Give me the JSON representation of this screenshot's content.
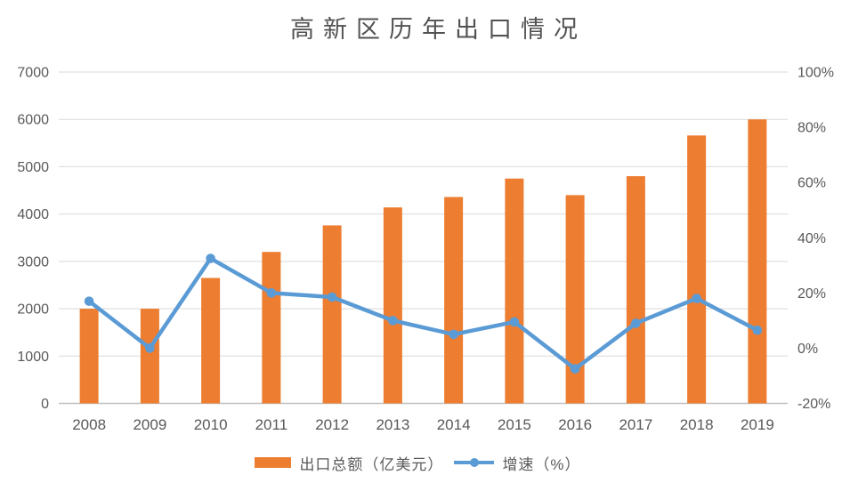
{
  "chart_data": {
    "type": "combo",
    "title": "高新区历年出口情况",
    "categories": [
      "2008",
      "2009",
      "2010",
      "2011",
      "2012",
      "2013",
      "2014",
      "2015",
      "2016",
      "2017",
      "2018",
      "2019"
    ],
    "series": [
      {
        "name": "出口总额（亿美元）",
        "type": "bar",
        "axis": "left",
        "color": "#ED7D31",
        "values": [
          2000,
          2000,
          2650,
          3200,
          3760,
          4140,
          4360,
          4750,
          4400,
          4800,
          5660,
          6000
        ]
      },
      {
        "name": "增速（%）",
        "type": "line",
        "axis": "right",
        "color": "#5B9BD5",
        "values": [
          17,
          0,
          32.5,
          20,
          18.5,
          10,
          5,
          9.5,
          -7.5,
          9,
          18,
          6.5
        ]
      }
    ],
    "left_axis": {
      "min": 0,
      "max": 7000,
      "step": 1000,
      "tick_labels": [
        "0",
        "1000",
        "2000",
        "3000",
        "4000",
        "5000",
        "6000",
        "7000"
      ]
    },
    "right_axis": {
      "min": -20,
      "max": 100,
      "step": 20,
      "tick_labels": [
        "-20%",
        "0%",
        "20%",
        "40%",
        "60%",
        "80%",
        "100%"
      ]
    },
    "grid": true,
    "legend_position": "bottom",
    "colors": {
      "grid": "#D9D9D9",
      "axis_line": "#BFBFBF",
      "tick_text": "#595959",
      "title_text": "#525252"
    }
  }
}
